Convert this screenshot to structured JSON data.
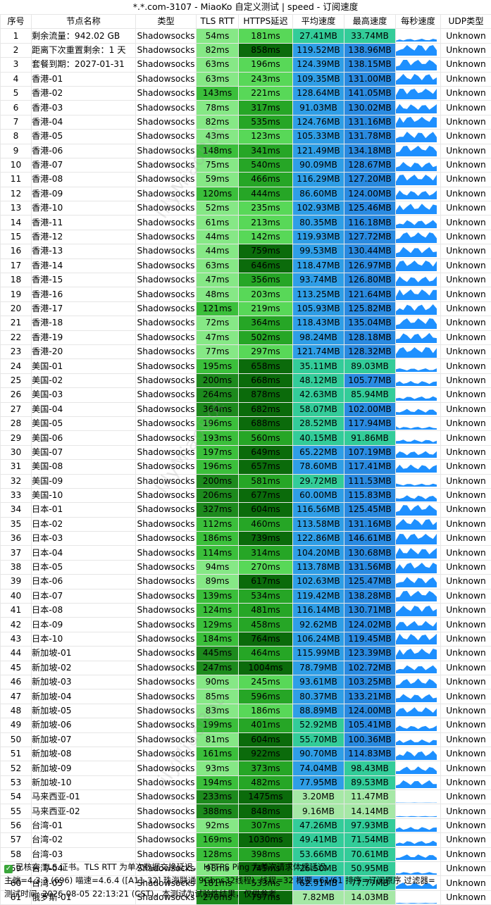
{
  "window": {
    "title": "*.*.com-3107 - MiaoKo 自定义测试 | speed - 订阅速度"
  },
  "columns": [
    "序号",
    "节点名称",
    "类型",
    "TLS RTT",
    "HTTPS延迟",
    "平均速度",
    "最高速度",
    "每秒速度",
    "UDP类型"
  ],
  "colors": {
    "rtt_light": "#86e886",
    "rtt_mid": "#3bbf3b",
    "rtt_dark": "#1d8a1d",
    "https_light": "#58d858",
    "https_mid": "#26a626",
    "https_dark": "#0b6b0b",
    "speed_low": "#a6e8a6",
    "speed_mid": "#33cc99",
    "speed_high": "#2f9ee6",
    "speed_top": "#2a8ae0",
    "spark": "#1e90ff"
  },
  "rows": [
    {
      "id": "1",
      "name": "剩余流量：942.02 GB",
      "type": "Shadowsocks",
      "tls": "54ms",
      "https": "181ms",
      "avg": "27.41MB",
      "max": "33.74MB",
      "udp": "Unknown"
    },
    {
      "id": "2",
      "name": "距离下次重置剩余：1 天",
      "type": "Shadowsocks",
      "tls": "82ms",
      "https": "858ms",
      "avg": "119.52MB",
      "max": "138.96MB",
      "udp": "Unknown"
    },
    {
      "id": "3",
      "name": "套餐到期：2027-01-31",
      "type": "Shadowsocks",
      "tls": "63ms",
      "https": "196ms",
      "avg": "124.39MB",
      "max": "138.15MB",
      "udp": "Unknown"
    },
    {
      "id": "4",
      "name": "香港-01",
      "type": "Shadowsocks",
      "tls": "63ms",
      "https": "243ms",
      "avg": "109.35MB",
      "max": "131.00MB",
      "udp": "Unknown"
    },
    {
      "id": "5",
      "name": "香港-02",
      "type": "Shadowsocks",
      "tls": "143ms",
      "https": "221ms",
      "avg": "128.64MB",
      "max": "141.05MB",
      "udp": "Unknown"
    },
    {
      "id": "6",
      "name": "香港-03",
      "type": "Shadowsocks",
      "tls": "78ms",
      "https": "317ms",
      "avg": "91.03MB",
      "max": "130.02MB",
      "udp": "Unknown"
    },
    {
      "id": "7",
      "name": "香港-04",
      "type": "Shadowsocks",
      "tls": "82ms",
      "https": "535ms",
      "avg": "124.76MB",
      "max": "131.16MB",
      "udp": "Unknown"
    },
    {
      "id": "8",
      "name": "香港-05",
      "type": "Shadowsocks",
      "tls": "43ms",
      "https": "123ms",
      "avg": "105.33MB",
      "max": "131.78MB",
      "udp": "Unknown"
    },
    {
      "id": "9",
      "name": "香港-06",
      "type": "Shadowsocks",
      "tls": "148ms",
      "https": "341ms",
      "avg": "121.49MB",
      "max": "134.18MB",
      "udp": "Unknown"
    },
    {
      "id": "10",
      "name": "香港-07",
      "type": "Shadowsocks",
      "tls": "75ms",
      "https": "540ms",
      "avg": "90.09MB",
      "max": "128.67MB",
      "udp": "Unknown"
    },
    {
      "id": "11",
      "name": "香港-08",
      "type": "Shadowsocks",
      "tls": "59ms",
      "https": "466ms",
      "avg": "116.29MB",
      "max": "127.20MB",
      "udp": "Unknown"
    },
    {
      "id": "12",
      "name": "香港-09",
      "type": "Shadowsocks",
      "tls": "120ms",
      "https": "444ms",
      "avg": "86.60MB",
      "max": "124.00MB",
      "udp": "Unknown"
    },
    {
      "id": "13",
      "name": "香港-10",
      "type": "Shadowsocks",
      "tls": "52ms",
      "https": "235ms",
      "avg": "102.93MB",
      "max": "125.46MB",
      "udp": "Unknown"
    },
    {
      "id": "14",
      "name": "香港-11",
      "type": "Shadowsocks",
      "tls": "61ms",
      "https": "213ms",
      "avg": "80.35MB",
      "max": "116.18MB",
      "udp": "Unknown"
    },
    {
      "id": "15",
      "name": "香港-12",
      "type": "Shadowsocks",
      "tls": "44ms",
      "https": "142ms",
      "avg": "119.93MB",
      "max": "127.72MB",
      "udp": "Unknown"
    },
    {
      "id": "16",
      "name": "香港-13",
      "type": "Shadowsocks",
      "tls": "44ms",
      "https": "759ms",
      "avg": "99.53MB",
      "max": "130.44MB",
      "udp": "Unknown"
    },
    {
      "id": "17",
      "name": "香港-14",
      "type": "Shadowsocks",
      "tls": "63ms",
      "https": "646ms",
      "avg": "118.47MB",
      "max": "126.97MB",
      "udp": "Unknown"
    },
    {
      "id": "18",
      "name": "香港-15",
      "type": "Shadowsocks",
      "tls": "47ms",
      "https": "356ms",
      "avg": "93.74MB",
      "max": "126.80MB",
      "udp": "Unknown"
    },
    {
      "id": "19",
      "name": "香港-16",
      "type": "Shadowsocks",
      "tls": "48ms",
      "https": "203ms",
      "avg": "113.25MB",
      "max": "121.64MB",
      "udp": "Unknown"
    },
    {
      "id": "20",
      "name": "香港-17",
      "type": "Shadowsocks",
      "tls": "121ms",
      "https": "219ms",
      "avg": "105.93MB",
      "max": "125.82MB",
      "udp": "Unknown"
    },
    {
      "id": "21",
      "name": "香港-18",
      "type": "Shadowsocks",
      "tls": "72ms",
      "https": "364ms",
      "avg": "118.43MB",
      "max": "135.04MB",
      "udp": "Unknown"
    },
    {
      "id": "22",
      "name": "香港-19",
      "type": "Shadowsocks",
      "tls": "47ms",
      "https": "502ms",
      "avg": "98.24MB",
      "max": "128.18MB",
      "udp": "Unknown"
    },
    {
      "id": "23",
      "name": "香港-20",
      "type": "Shadowsocks",
      "tls": "77ms",
      "https": "297ms",
      "avg": "121.74MB",
      "max": "128.32MB",
      "udp": "Unknown"
    },
    {
      "id": "24",
      "name": "美国-01",
      "type": "Shadowsocks",
      "tls": "195ms",
      "https": "658ms",
      "avg": "35.11MB",
      "max": "89.03MB",
      "udp": "Unknown"
    },
    {
      "id": "25",
      "name": "美国-02",
      "type": "Shadowsocks",
      "tls": "200ms",
      "https": "668ms",
      "avg": "48.12MB",
      "max": "105.77MB",
      "udp": "Unknown"
    },
    {
      "id": "26",
      "name": "美国-03",
      "type": "Shadowsocks",
      "tls": "264ms",
      "https": "878ms",
      "avg": "42.63MB",
      "max": "85.94MB",
      "udp": "Unknown"
    },
    {
      "id": "27",
      "name": "美国-04",
      "type": "Shadowsocks",
      "tls": "364ms",
      "https": "682ms",
      "avg": "58.07MB",
      "max": "102.00MB",
      "udp": "Unknown"
    },
    {
      "id": "28",
      "name": "美国-05",
      "type": "Shadowsocks",
      "tls": "196ms",
      "https": "688ms",
      "avg": "28.52MB",
      "max": "117.94MB",
      "udp": "Unknown"
    },
    {
      "id": "29",
      "name": "美国-06",
      "type": "Shadowsocks",
      "tls": "193ms",
      "https": "560ms",
      "avg": "40.15MB",
      "max": "91.86MB",
      "udp": "Unknown"
    },
    {
      "id": "30",
      "name": "美国-07",
      "type": "Shadowsocks",
      "tls": "197ms",
      "https": "649ms",
      "avg": "65.22MB",
      "max": "107.19MB",
      "udp": "Unknown"
    },
    {
      "id": "31",
      "name": "美国-08",
      "type": "Shadowsocks",
      "tls": "196ms",
      "https": "657ms",
      "avg": "78.60MB",
      "max": "117.41MB",
      "udp": "Unknown"
    },
    {
      "id": "32",
      "name": "美国-09",
      "type": "Shadowsocks",
      "tls": "200ms",
      "https": "581ms",
      "avg": "29.72MB",
      "max": "111.53MB",
      "udp": "Unknown"
    },
    {
      "id": "33",
      "name": "美国-10",
      "type": "Shadowsocks",
      "tls": "206ms",
      "https": "677ms",
      "avg": "60.00MB",
      "max": "115.83MB",
      "udp": "Unknown"
    },
    {
      "id": "34",
      "name": "日本-01",
      "type": "Shadowsocks",
      "tls": "327ms",
      "https": "604ms",
      "avg": "116.56MB",
      "max": "125.45MB",
      "udp": "Unknown"
    },
    {
      "id": "35",
      "name": "日本-02",
      "type": "Shadowsocks",
      "tls": "112ms",
      "https": "460ms",
      "avg": "113.58MB",
      "max": "131.16MB",
      "udp": "Unknown"
    },
    {
      "id": "36",
      "name": "日本-03",
      "type": "Shadowsocks",
      "tls": "186ms",
      "https": "739ms",
      "avg": "122.86MB",
      "max": "146.61MB",
      "udp": "Unknown"
    },
    {
      "id": "37",
      "name": "日本-04",
      "type": "Shadowsocks",
      "tls": "114ms",
      "https": "314ms",
      "avg": "104.20MB",
      "max": "130.68MB",
      "udp": "Unknown"
    },
    {
      "id": "38",
      "name": "日本-05",
      "type": "Shadowsocks",
      "tls": "94ms",
      "https": "270ms",
      "avg": "113.78MB",
      "max": "131.56MB",
      "udp": "Unknown"
    },
    {
      "id": "39",
      "name": "日本-06",
      "type": "Shadowsocks",
      "tls": "89ms",
      "https": "617ms",
      "avg": "102.63MB",
      "max": "125.47MB",
      "udp": "Unknown"
    },
    {
      "id": "40",
      "name": "日本-07",
      "type": "Shadowsocks",
      "tls": "139ms",
      "https": "534ms",
      "avg": "119.42MB",
      "max": "138.28MB",
      "udp": "Unknown"
    },
    {
      "id": "41",
      "name": "日本-08",
      "type": "Shadowsocks",
      "tls": "124ms",
      "https": "481ms",
      "avg": "116.14MB",
      "max": "130.71MB",
      "udp": "Unknown"
    },
    {
      "id": "42",
      "name": "日本-09",
      "type": "Shadowsocks",
      "tls": "129ms",
      "https": "458ms",
      "avg": "92.62MB",
      "max": "124.02MB",
      "udp": "Unknown"
    },
    {
      "id": "43",
      "name": "日本-10",
      "type": "Shadowsocks",
      "tls": "184ms",
      "https": "764ms",
      "avg": "106.24MB",
      "max": "119.45MB",
      "udp": "Unknown"
    },
    {
      "id": "44",
      "name": "新加坡-01",
      "type": "Shadowsocks",
      "tls": "445ms",
      "https": "464ms",
      "avg": "115.99MB",
      "max": "123.39MB",
      "udp": "Unknown"
    },
    {
      "id": "45",
      "name": "新加坡-02",
      "type": "Shadowsocks",
      "tls": "247ms",
      "https": "1004ms",
      "avg": "78.79MB",
      "max": "102.72MB",
      "udp": "Unknown"
    },
    {
      "id": "46",
      "name": "新加坡-03",
      "type": "Shadowsocks",
      "tls": "90ms",
      "https": "245ms",
      "avg": "93.61MB",
      "max": "103.25MB",
      "udp": "Unknown"
    },
    {
      "id": "47",
      "name": "新加坡-04",
      "type": "Shadowsocks",
      "tls": "85ms",
      "https": "596ms",
      "avg": "80.37MB",
      "max": "133.21MB",
      "udp": "Unknown"
    },
    {
      "id": "48",
      "name": "新加坡-05",
      "type": "Shadowsocks",
      "tls": "83ms",
      "https": "186ms",
      "avg": "88.89MB",
      "max": "124.00MB",
      "udp": "Unknown"
    },
    {
      "id": "49",
      "name": "新加坡-06",
      "type": "Shadowsocks",
      "tls": "199ms",
      "https": "401ms",
      "avg": "52.92MB",
      "max": "105.41MB",
      "udp": "Unknown"
    },
    {
      "id": "50",
      "name": "新加坡-07",
      "type": "Shadowsocks",
      "tls": "81ms",
      "https": "604ms",
      "avg": "55.70MB",
      "max": "100.36MB",
      "udp": "Unknown"
    },
    {
      "id": "51",
      "name": "新加坡-08",
      "type": "Shadowsocks",
      "tls": "161ms",
      "https": "922ms",
      "avg": "90.70MB",
      "max": "114.83MB",
      "udp": "Unknown"
    },
    {
      "id": "52",
      "name": "新加坡-09",
      "type": "Shadowsocks",
      "tls": "93ms",
      "https": "373ms",
      "avg": "74.04MB",
      "max": "98.43MB",
      "udp": "Unknown"
    },
    {
      "id": "53",
      "name": "新加坡-10",
      "type": "Shadowsocks",
      "tls": "194ms",
      "https": "482ms",
      "avg": "77.95MB",
      "max": "89.53MB",
      "udp": "Unknown"
    },
    {
      "id": "54",
      "name": "马来西亚-01",
      "type": "Shadowsocks",
      "tls": "233ms",
      "https": "1475ms",
      "avg": "3.20MB",
      "max": "11.47MB",
      "udp": "Unknown"
    },
    {
      "id": "55",
      "name": "马来西亚-02",
      "type": "Shadowsocks",
      "tls": "388ms",
      "https": "848ms",
      "avg": "9.16MB",
      "max": "14.14MB",
      "udp": "Unknown"
    },
    {
      "id": "56",
      "name": "台湾-01",
      "type": "Shadowsocks",
      "tls": "92ms",
      "https": "307ms",
      "avg": "47.26MB",
      "max": "97.93MB",
      "udp": "Unknown"
    },
    {
      "id": "57",
      "name": "台湾-02",
      "type": "Shadowsocks",
      "tls": "169ms",
      "https": "1030ms",
      "avg": "49.41MB",
      "max": "71.54MB",
      "udp": "Unknown"
    },
    {
      "id": "58",
      "name": "台湾-03",
      "type": "Shadowsocks",
      "tls": "128ms",
      "https": "398ms",
      "avg": "53.66MB",
      "max": "70.61MB",
      "udp": "Unknown"
    },
    {
      "id": "59",
      "name": "台湾-04",
      "type": "Shadowsocks",
      "tls": "98ms",
      "https": "745ms",
      "avg": "26.50MB",
      "max": "50.95MB",
      "udp": "Unknown"
    },
    {
      "id": "60",
      "name": "台湾-05",
      "type": "Shadowsocks",
      "tls": "181ms",
      "https": "533ms",
      "avg": "62.91MB",
      "max": "77.77MB",
      "udp": "Unknown"
    },
    {
      "id": "61",
      "name": "俄罗斯-01",
      "type": "Shadowsocks",
      "tls": "270ms",
      "https": "797ms",
      "avg": "7.82MB",
      "max": "14.03MB",
      "udp": "Unknown"
    }
  ],
  "footer": {
    "line1": "已核实 TLS 证书。TLS RTT 为单次数据交换延迟， HTTPS Ping 为单次请求体感延迟。",
    "line2": "主端=4.3.3 (696) 喵速=4.6.4 ([A11-32] 珠海联通 9Gbps32线程), 线程=32 概要=61/61 排序=订阅原序 过滤器=",
    "line3": "测试时间: 2026-08-05 22:13:21 (CST)，本测试为试验性结果，仅供参考。"
  }
}
